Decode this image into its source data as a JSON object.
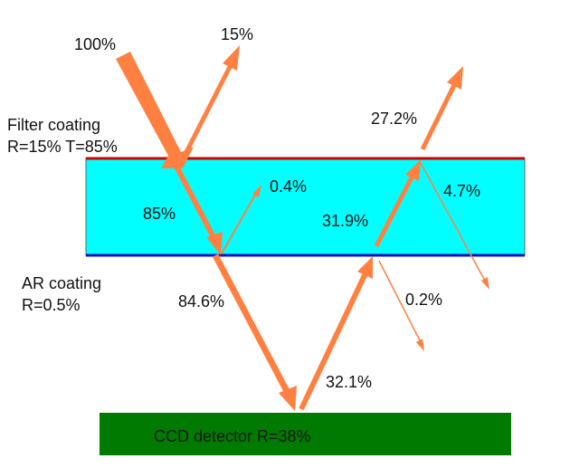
{
  "colors": {
    "filter_fill": "#00ffff",
    "top_edge": "#d00000",
    "bottom_edge": "#1010c0",
    "detector_fill": "#007a00",
    "arrow": "#ff8040"
  },
  "labels": {
    "incident": "100%",
    "reflected_top": "15%",
    "filter_line1": "Filter coating",
    "filter_line2": "R=15% T=85%",
    "transmitted_in_filter": "85%",
    "internal_reflect": "0.4%",
    "ar_line1": "AR coating",
    "ar_line2": "R=0.5%",
    "exit_to_detector": "84.6%",
    "detector_reflect": "32.1%",
    "second_pass_in_filter": "31.9%",
    "second_exit_top": "27.2%",
    "second_internal_reflect": "4.7%",
    "ar_reflect_small": "0.2%"
  },
  "detector": {
    "label": "CCD detector R=38%"
  }
}
